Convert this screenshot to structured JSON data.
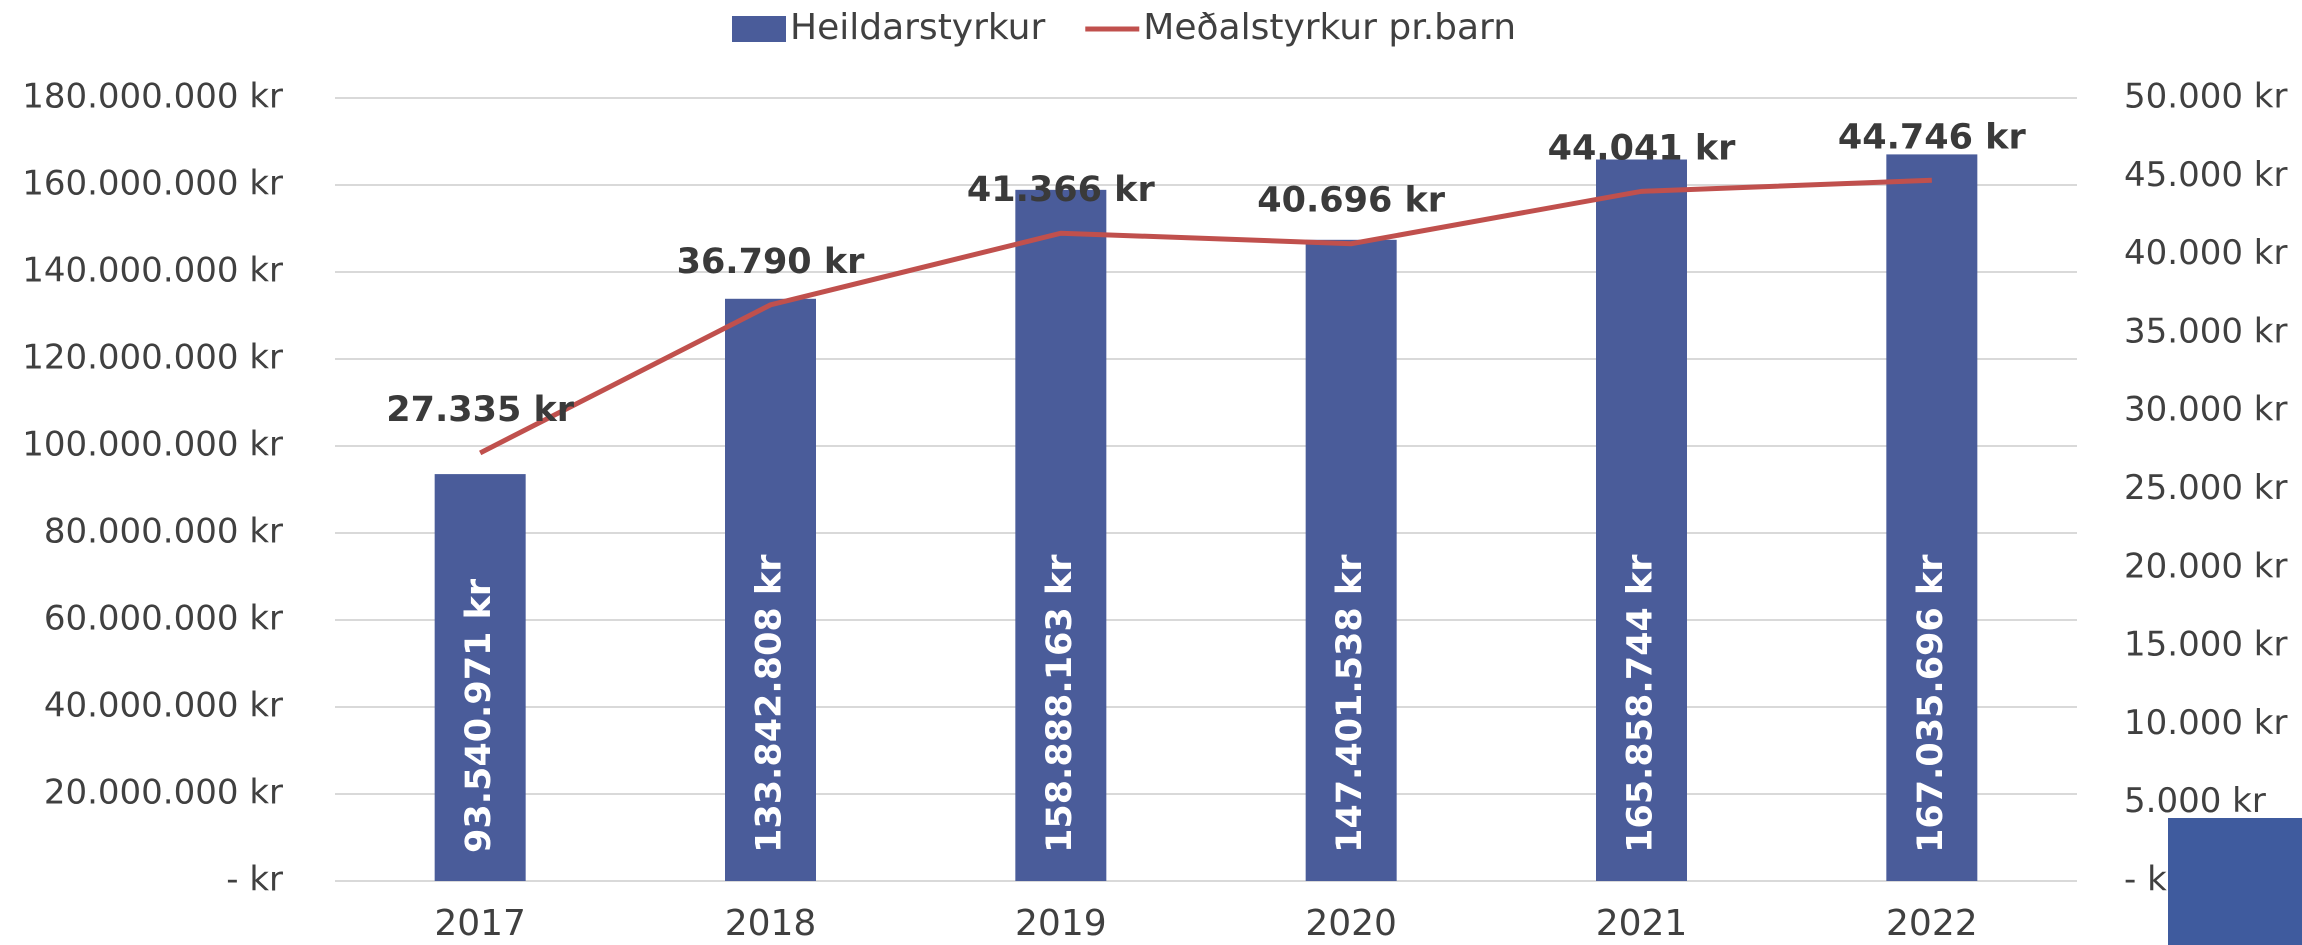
{
  "chart_data": {
    "type": "bar_line",
    "categories": [
      "2017",
      "2018",
      "2019",
      "2020",
      "2021",
      "2022"
    ],
    "series": [
      {
        "name": "Heildarstyrkur",
        "color": "#4a5c9a",
        "type": "bar",
        "values": [
          93540971,
          133842808,
          158888163,
          147401538,
          165858744,
          167035696
        ],
        "value_labels": [
          "93.540.971 kr",
          "133.842.808 kr",
          "158.888.163 kr",
          "147.401.538 kr",
          "165.858.744 kr",
          "167.035.696 kr"
        ]
      },
      {
        "name": "Meðalstyrkur pr.barn",
        "color": "#c0504d",
        "type": "line",
        "axis": "y2",
        "values": [
          27335,
          36790,
          41366,
          40696,
          44041,
          44746
        ],
        "value_labels": [
          "27.335 kr",
          "36.790 kr",
          "41.366 kr",
          "40.696 kr",
          "44.041 kr",
          "44.746 kr"
        ]
      }
    ],
    "ylim": [
      0,
      180000000
    ],
    "yticks": [
      {
        "value": 0,
        "label": "-   kr"
      },
      {
        "value": 20000000,
        "label": "20.000.000 kr"
      },
      {
        "value": 40000000,
        "label": "40.000.000 kr"
      },
      {
        "value": 60000000,
        "label": "60.000.000 kr"
      },
      {
        "value": 80000000,
        "label": "80.000.000 kr"
      },
      {
        "value": 100000000,
        "label": "100.000.000 kr"
      },
      {
        "value": 120000000,
        "label": "120.000.000 kr"
      },
      {
        "value": 140000000,
        "label": "140.000.000 kr"
      },
      {
        "value": 160000000,
        "label": "160.000.000 kr"
      },
      {
        "value": 180000000,
        "label": "180.000.000 kr"
      }
    ],
    "y2lim": [
      0,
      50000
    ],
    "y2ticks": [
      {
        "value": 0,
        "label": "-   kr"
      },
      {
        "value": 5000,
        "label": "5.000 kr"
      },
      {
        "value": 10000,
        "label": "10.000 kr"
      },
      {
        "value": 15000,
        "label": "15.000 kr"
      },
      {
        "value": 20000,
        "label": "20.000 kr"
      },
      {
        "value": 25000,
        "label": "25.000 kr"
      },
      {
        "value": 30000,
        "label": "30.000 kr"
      },
      {
        "value": 35000,
        "label": "35.000 kr"
      },
      {
        "value": 40000,
        "label": "40.000 kr"
      },
      {
        "value": 45000,
        "label": "45.000 kr"
      },
      {
        "value": 50000,
        "label": "50.000 kr"
      }
    ],
    "grid": true,
    "legend": "top"
  }
}
